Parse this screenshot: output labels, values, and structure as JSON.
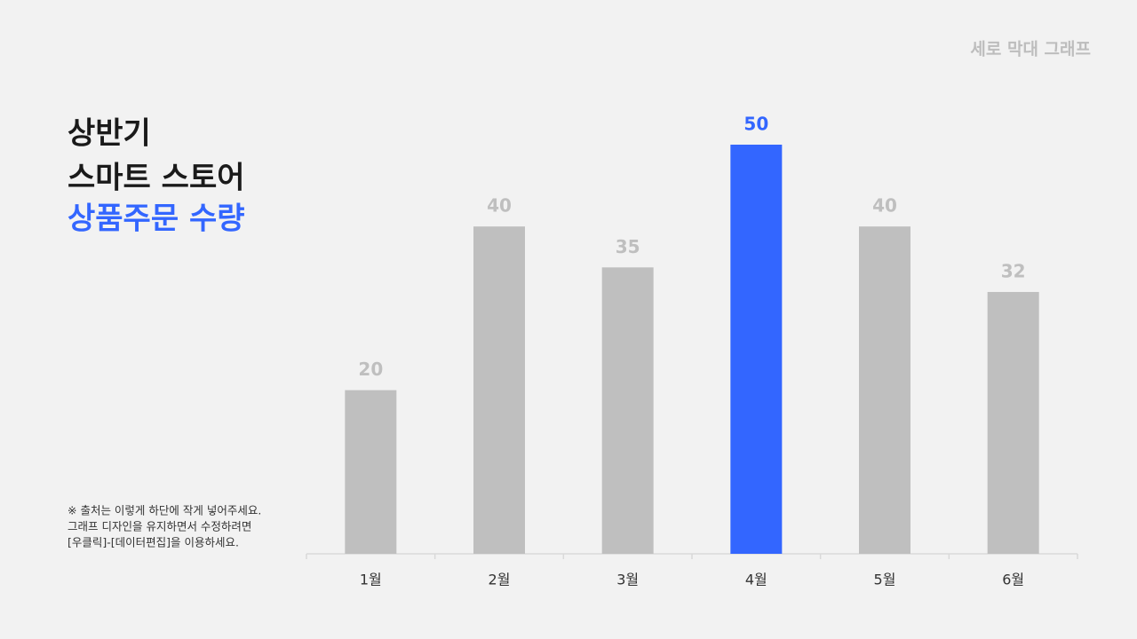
{
  "tag": "세로 막대 그래프",
  "title": [
    "상반기",
    "스마트 스토어",
    "상품주문 수량"
  ],
  "notes": [
    "※ 출처는 이렇게 하단에 작게 넣어주세요.",
    "그래프 디자인을 유지하면서 수정하려면",
    "[우클릭]-[데이터편집]을 이용하세요."
  ],
  "chart_data": {
    "type": "bar",
    "categories": [
      "1월",
      "2월",
      "3월",
      "4월",
      "5월",
      "6월"
    ],
    "values": [
      20,
      40,
      35,
      50,
      40,
      32
    ],
    "colors": [
      "#bfbfbf",
      "#bfbfbf",
      "#bfbfbf",
      "#3366ff",
      "#bfbfbf",
      "#bfbfbf"
    ],
    "ylim": [
      0,
      50
    ]
  }
}
